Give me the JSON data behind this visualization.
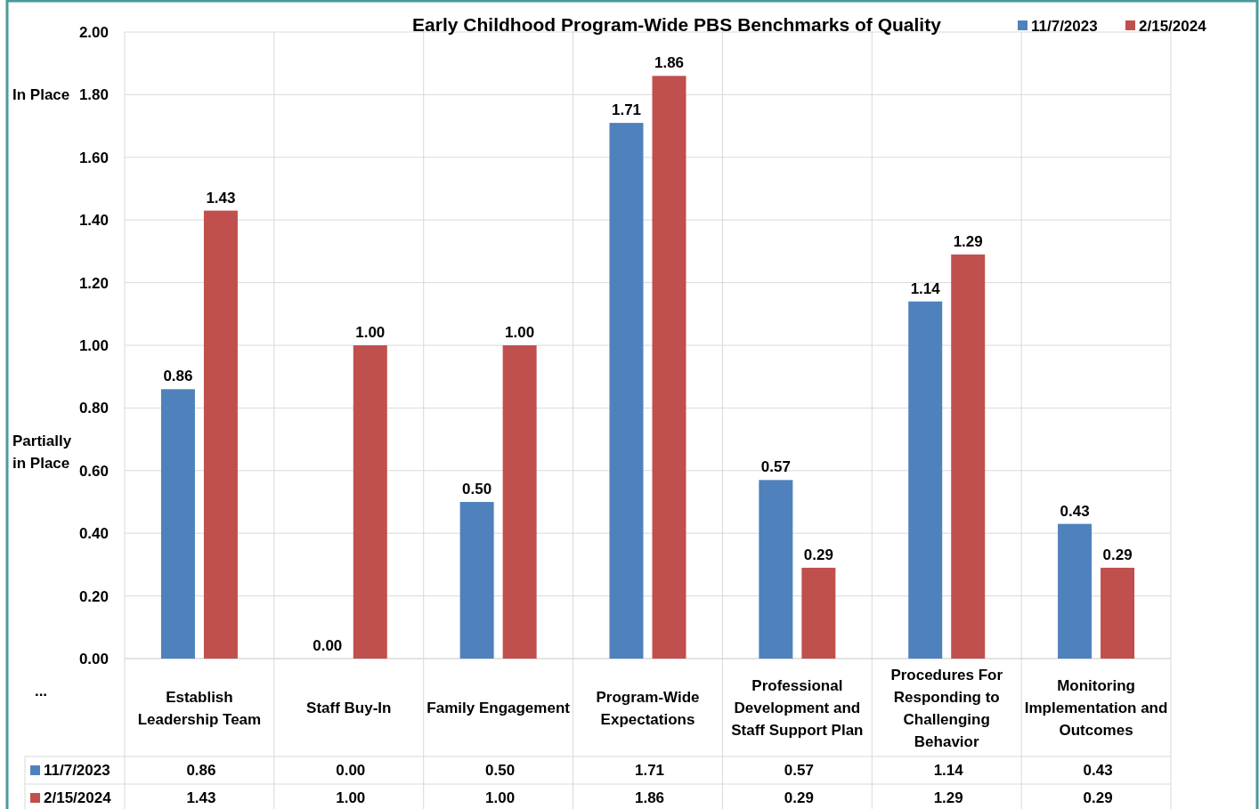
{
  "chart_data": {
    "type": "bar",
    "title": "Early Childhood Program-Wide PBS Benchmarks of Quality",
    "categories": [
      "Establish Leadership Team",
      "Staff Buy-In",
      "Family Engagement",
      "Program-Wide Expectations",
      "Professional Development and Staff Support Plan",
      "Procedures For Responding to Challenging Behavior",
      "Monitoring Implementation and Outcomes"
    ],
    "series": [
      {
        "name": "11/7/2023",
        "color": "#4f81bd",
        "values": [
          0.86,
          0.0,
          0.5,
          1.71,
          0.57,
          1.14,
          0.43
        ],
        "value_labels": [
          "0.86",
          "0.00",
          "0.50",
          "1.71",
          "0.57",
          "1.14",
          "0.43"
        ]
      },
      {
        "name": "2/15/2024",
        "color": "#c0504d",
        "values": [
          1.43,
          1.0,
          1.0,
          1.86,
          0.29,
          1.29,
          0.29
        ],
        "value_labels": [
          "1.43",
          "1.00",
          "1.00",
          "1.86",
          "0.29",
          "1.29",
          "0.29"
        ]
      }
    ],
    "ylim": [
      0,
      2
    ],
    "yticks": [
      {
        "value": 0,
        "label": "0.00"
      },
      {
        "value": 0.2,
        "label": "0.20"
      },
      {
        "value": 0.4,
        "label": "0.40"
      },
      {
        "value": 0.6,
        "label": "0.60"
      },
      {
        "value": 0.8,
        "label": "0.80"
      },
      {
        "value": 1,
        "label": "1.00"
      },
      {
        "value": 1.2,
        "label": "1.20"
      },
      {
        "value": 1.4,
        "label": "1.40"
      },
      {
        "value": 1.6,
        "label": "1.60"
      },
      {
        "value": 1.8,
        "label": "1.80"
      },
      {
        "value": 2,
        "label": "2.00"
      }
    ],
    "grid": true,
    "legend": "top right",
    "annotations": [
      "In Place",
      "Partially in Place",
      "..."
    ]
  }
}
